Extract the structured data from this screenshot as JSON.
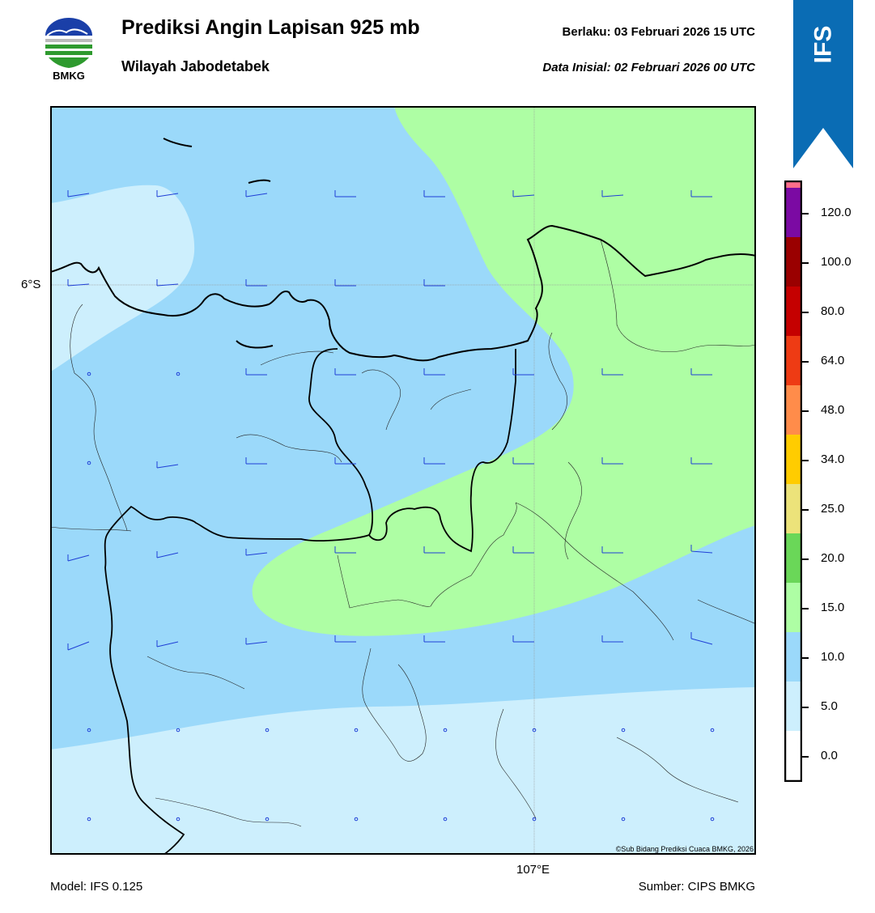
{
  "header": {
    "title": "Prediksi Angin Lapisan 925 mb",
    "subtitle": "Wilayah Jabodetabek",
    "valid": "Berlaku:  03 Februari 2026 15 UTC",
    "initial": "Data Inisial:  02 Februari 2026 00 UTC",
    "logo_text": "BMKG",
    "badge": "IFS"
  },
  "map": {
    "lat_label": "6°S",
    "lon_label": "107°E",
    "copyright": "©Sub Bidang Prediksi Cuaca BMKG, 2026",
    "colors": {
      "shade_0_5": "#cdeffd",
      "shade_5_10": "#9bd9fa",
      "shade_10_15": "#aefea4",
      "barb": "#1f3fd6",
      "gridline": "#9a9a9a",
      "coast": "#000000"
    }
  },
  "colorbar": {
    "ticks": [
      "0.0",
      "5.0",
      "10.0",
      "15.0",
      "20.0",
      "25.0",
      "34.0",
      "48.0",
      "64.0",
      "80.0",
      "100.0",
      "120.0"
    ],
    "colors": [
      "#ffffff",
      "#cdeffd",
      "#9bd9fa",
      "#aefea4",
      "#6ad758",
      "#ece37a",
      "#ffcc00",
      "#ff8c4a",
      "#ee3b14",
      "#c50000",
      "#9a0000",
      "#7b0aa3",
      "#ff6e8a"
    ]
  },
  "footer": {
    "model": "Model: IFS 0.125",
    "source": "Sumber: CIPS BMKG"
  }
}
